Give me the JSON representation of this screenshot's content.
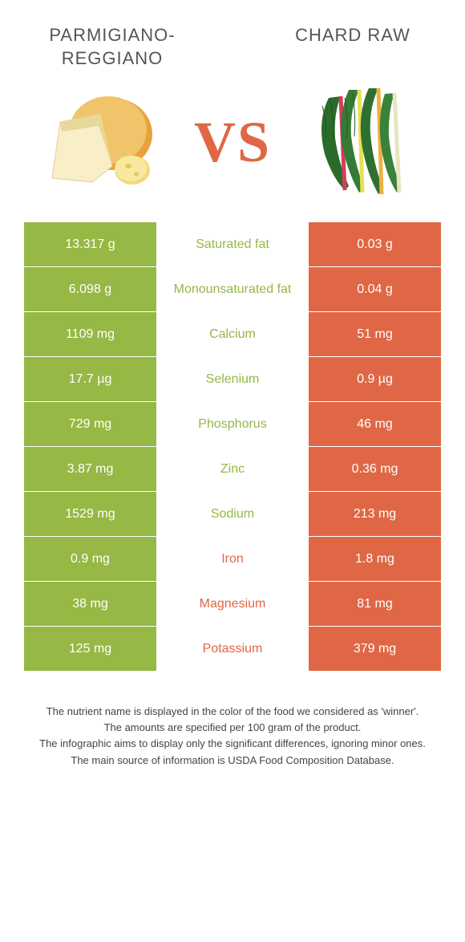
{
  "food_left": {
    "name": "PARMIGIANO-REGGIANO",
    "color": "#96b844"
  },
  "food_right": {
    "name": "CHARD RAW",
    "color": "#e06745"
  },
  "vs_label": "VS",
  "vs_color": "#e06745",
  "table": {
    "left_bg": "#96b844",
    "right_bg": "#e06745",
    "rows": [
      {
        "left": "13.317 g",
        "label": "Saturated fat",
        "winner": "left",
        "right": "0.03 g"
      },
      {
        "left": "6.098 g",
        "label": "Monounsaturated fat",
        "winner": "left",
        "right": "0.04 g"
      },
      {
        "left": "1109 mg",
        "label": "Calcium",
        "winner": "left",
        "right": "51 mg"
      },
      {
        "left": "17.7 µg",
        "label": "Selenium",
        "winner": "left",
        "right": "0.9 µg"
      },
      {
        "left": "729 mg",
        "label": "Phosphorus",
        "winner": "left",
        "right": "46 mg"
      },
      {
        "left": "3.87 mg",
        "label": "Zinc",
        "winner": "left",
        "right": "0.36 mg"
      },
      {
        "left": "1529 mg",
        "label": "Sodium",
        "winner": "left",
        "right": "213 mg"
      },
      {
        "left": "0.9 mg",
        "label": "Iron",
        "winner": "right",
        "right": "1.8 mg"
      },
      {
        "left": "38 mg",
        "label": "Magnesium",
        "winner": "right",
        "right": "81 mg"
      },
      {
        "left": "125 mg",
        "label": "Potassium",
        "winner": "right",
        "right": "379 mg"
      }
    ]
  },
  "footer": {
    "line1": "The nutrient name is displayed in the color of the food we considered as 'winner'.",
    "line2": "The amounts are specified per 100 gram of the product.",
    "line3": "The infographic aims to display only the significant differences, ignoring minor ones.",
    "line4": "The main source of information is USDA Food Composition Database."
  }
}
